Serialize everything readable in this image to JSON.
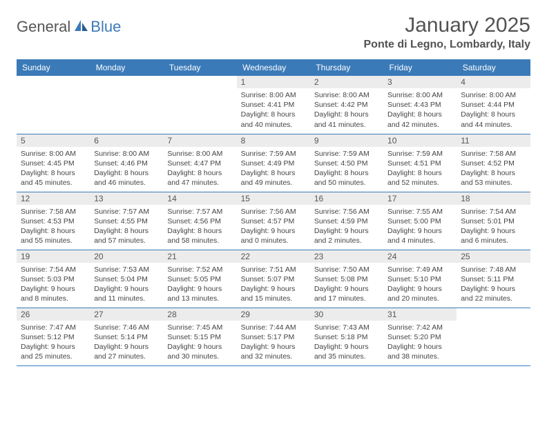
{
  "logo": {
    "general": "General",
    "blue": "Blue"
  },
  "title": "January 2025",
  "location": "Ponte di Legno, Lombardy, Italy",
  "colors": {
    "header_bg": "#3b7ab8",
    "header_text": "#ffffff",
    "daynum_bg": "#ececec",
    "border": "#3b7ab8",
    "text": "#444444",
    "title_text": "#525252"
  },
  "weekdays": [
    "Sunday",
    "Monday",
    "Tuesday",
    "Wednesday",
    "Thursday",
    "Friday",
    "Saturday"
  ],
  "weeks": [
    [
      null,
      null,
      null,
      {
        "n": "1",
        "sr": "Sunrise: 8:00 AM",
        "ss": "Sunset: 4:41 PM",
        "d1": "Daylight: 8 hours",
        "d2": "and 40 minutes."
      },
      {
        "n": "2",
        "sr": "Sunrise: 8:00 AM",
        "ss": "Sunset: 4:42 PM",
        "d1": "Daylight: 8 hours",
        "d2": "and 41 minutes."
      },
      {
        "n": "3",
        "sr": "Sunrise: 8:00 AM",
        "ss": "Sunset: 4:43 PM",
        "d1": "Daylight: 8 hours",
        "d2": "and 42 minutes."
      },
      {
        "n": "4",
        "sr": "Sunrise: 8:00 AM",
        "ss": "Sunset: 4:44 PM",
        "d1": "Daylight: 8 hours",
        "d2": "and 44 minutes."
      }
    ],
    [
      {
        "n": "5",
        "sr": "Sunrise: 8:00 AM",
        "ss": "Sunset: 4:45 PM",
        "d1": "Daylight: 8 hours",
        "d2": "and 45 minutes."
      },
      {
        "n": "6",
        "sr": "Sunrise: 8:00 AM",
        "ss": "Sunset: 4:46 PM",
        "d1": "Daylight: 8 hours",
        "d2": "and 46 minutes."
      },
      {
        "n": "7",
        "sr": "Sunrise: 8:00 AM",
        "ss": "Sunset: 4:47 PM",
        "d1": "Daylight: 8 hours",
        "d2": "and 47 minutes."
      },
      {
        "n": "8",
        "sr": "Sunrise: 7:59 AM",
        "ss": "Sunset: 4:49 PM",
        "d1": "Daylight: 8 hours",
        "d2": "and 49 minutes."
      },
      {
        "n": "9",
        "sr": "Sunrise: 7:59 AM",
        "ss": "Sunset: 4:50 PM",
        "d1": "Daylight: 8 hours",
        "d2": "and 50 minutes."
      },
      {
        "n": "10",
        "sr": "Sunrise: 7:59 AM",
        "ss": "Sunset: 4:51 PM",
        "d1": "Daylight: 8 hours",
        "d2": "and 52 minutes."
      },
      {
        "n": "11",
        "sr": "Sunrise: 7:58 AM",
        "ss": "Sunset: 4:52 PM",
        "d1": "Daylight: 8 hours",
        "d2": "and 53 minutes."
      }
    ],
    [
      {
        "n": "12",
        "sr": "Sunrise: 7:58 AM",
        "ss": "Sunset: 4:53 PM",
        "d1": "Daylight: 8 hours",
        "d2": "and 55 minutes."
      },
      {
        "n": "13",
        "sr": "Sunrise: 7:57 AM",
        "ss": "Sunset: 4:55 PM",
        "d1": "Daylight: 8 hours",
        "d2": "and 57 minutes."
      },
      {
        "n": "14",
        "sr": "Sunrise: 7:57 AM",
        "ss": "Sunset: 4:56 PM",
        "d1": "Daylight: 8 hours",
        "d2": "and 58 minutes."
      },
      {
        "n": "15",
        "sr": "Sunrise: 7:56 AM",
        "ss": "Sunset: 4:57 PM",
        "d1": "Daylight: 9 hours",
        "d2": "and 0 minutes."
      },
      {
        "n": "16",
        "sr": "Sunrise: 7:56 AM",
        "ss": "Sunset: 4:59 PM",
        "d1": "Daylight: 9 hours",
        "d2": "and 2 minutes."
      },
      {
        "n": "17",
        "sr": "Sunrise: 7:55 AM",
        "ss": "Sunset: 5:00 PM",
        "d1": "Daylight: 9 hours",
        "d2": "and 4 minutes."
      },
      {
        "n": "18",
        "sr": "Sunrise: 7:54 AM",
        "ss": "Sunset: 5:01 PM",
        "d1": "Daylight: 9 hours",
        "d2": "and 6 minutes."
      }
    ],
    [
      {
        "n": "19",
        "sr": "Sunrise: 7:54 AM",
        "ss": "Sunset: 5:03 PM",
        "d1": "Daylight: 9 hours",
        "d2": "and 8 minutes."
      },
      {
        "n": "20",
        "sr": "Sunrise: 7:53 AM",
        "ss": "Sunset: 5:04 PM",
        "d1": "Daylight: 9 hours",
        "d2": "and 11 minutes."
      },
      {
        "n": "21",
        "sr": "Sunrise: 7:52 AM",
        "ss": "Sunset: 5:05 PM",
        "d1": "Daylight: 9 hours",
        "d2": "and 13 minutes."
      },
      {
        "n": "22",
        "sr": "Sunrise: 7:51 AM",
        "ss": "Sunset: 5:07 PM",
        "d1": "Daylight: 9 hours",
        "d2": "and 15 minutes."
      },
      {
        "n": "23",
        "sr": "Sunrise: 7:50 AM",
        "ss": "Sunset: 5:08 PM",
        "d1": "Daylight: 9 hours",
        "d2": "and 17 minutes."
      },
      {
        "n": "24",
        "sr": "Sunrise: 7:49 AM",
        "ss": "Sunset: 5:10 PM",
        "d1": "Daylight: 9 hours",
        "d2": "and 20 minutes."
      },
      {
        "n": "25",
        "sr": "Sunrise: 7:48 AM",
        "ss": "Sunset: 5:11 PM",
        "d1": "Daylight: 9 hours",
        "d2": "and 22 minutes."
      }
    ],
    [
      {
        "n": "26",
        "sr": "Sunrise: 7:47 AM",
        "ss": "Sunset: 5:12 PM",
        "d1": "Daylight: 9 hours",
        "d2": "and 25 minutes."
      },
      {
        "n": "27",
        "sr": "Sunrise: 7:46 AM",
        "ss": "Sunset: 5:14 PM",
        "d1": "Daylight: 9 hours",
        "d2": "and 27 minutes."
      },
      {
        "n": "28",
        "sr": "Sunrise: 7:45 AM",
        "ss": "Sunset: 5:15 PM",
        "d1": "Daylight: 9 hours",
        "d2": "and 30 minutes."
      },
      {
        "n": "29",
        "sr": "Sunrise: 7:44 AM",
        "ss": "Sunset: 5:17 PM",
        "d1": "Daylight: 9 hours",
        "d2": "and 32 minutes."
      },
      {
        "n": "30",
        "sr": "Sunrise: 7:43 AM",
        "ss": "Sunset: 5:18 PM",
        "d1": "Daylight: 9 hours",
        "d2": "and 35 minutes."
      },
      {
        "n": "31",
        "sr": "Sunrise: 7:42 AM",
        "ss": "Sunset: 5:20 PM",
        "d1": "Daylight: 9 hours",
        "d2": "and 38 minutes."
      },
      null
    ]
  ]
}
